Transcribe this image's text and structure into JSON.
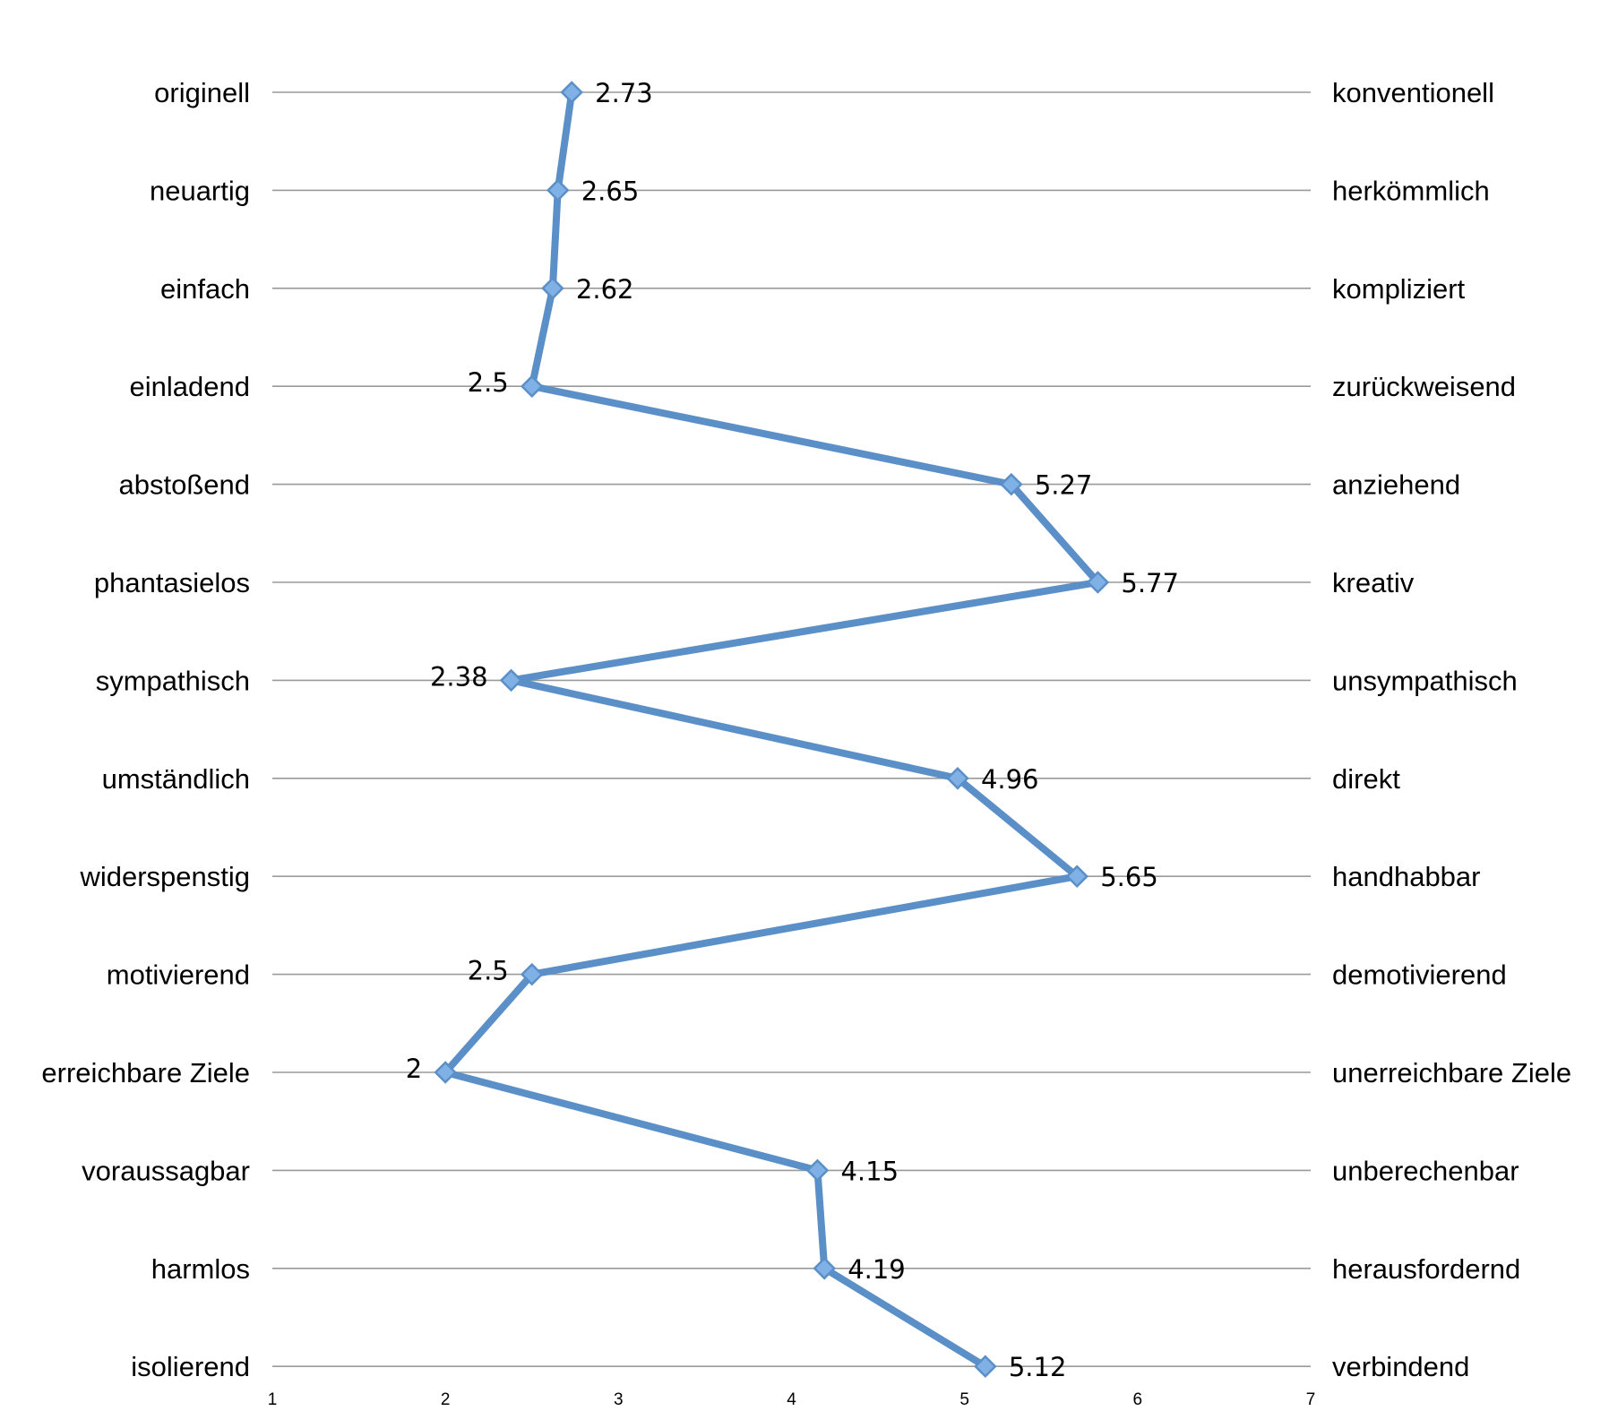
{
  "chart_data": {
    "type": "line",
    "title": "",
    "xlabel": "",
    "ylabel": "",
    "xlim": [
      1,
      7
    ],
    "x_ticks": [
      "1",
      "2",
      "3",
      "4",
      "5",
      "6",
      "7"
    ],
    "grid": true,
    "orientation": "horizontal-values-vertical-categories",
    "left_labels": [
      "originell",
      "neuartig",
      "einfach",
      "einladend",
      "abstoßend",
      "phantasielos",
      "sympathisch",
      "umständlich",
      "widerspenstig",
      "motivierend",
      "erreichbare Ziele",
      "voraussagbar",
      "harmlos",
      "isolierend"
    ],
    "right_labels": [
      "konventionell",
      "herkömmlich",
      "kompliziert",
      "zurückweisend",
      "anziehend",
      "kreativ",
      "unsympathisch",
      "direkt",
      "handhabbar",
      "demotivierend",
      "unerreichbare Ziele",
      "unberechenbar",
      "herausfordernd",
      "verbindend"
    ],
    "values": [
      2.73,
      2.65,
      2.62,
      2.5,
      5.27,
      5.77,
      2.38,
      4.96,
      5.65,
      2.5,
      2.0,
      4.15,
      4.19,
      5.12
    ],
    "value_labels": [
      "2.73",
      "2.65",
      "2.62",
      "2.5",
      "5.27",
      "5.77",
      "2.38",
      "4.96",
      "5.65",
      "2.5",
      "2",
      "4.15",
      "4.19",
      "5.12"
    ],
    "label_sides": [
      "right",
      "right",
      "right",
      "left",
      "right",
      "right",
      "left",
      "right",
      "right",
      "left",
      "left",
      "right",
      "right",
      "right"
    ],
    "series_color": "#5b8fc7",
    "marker_color": "#7fb0e6",
    "marker_shape": "diamond",
    "grid_color": "#9a9a9a"
  }
}
